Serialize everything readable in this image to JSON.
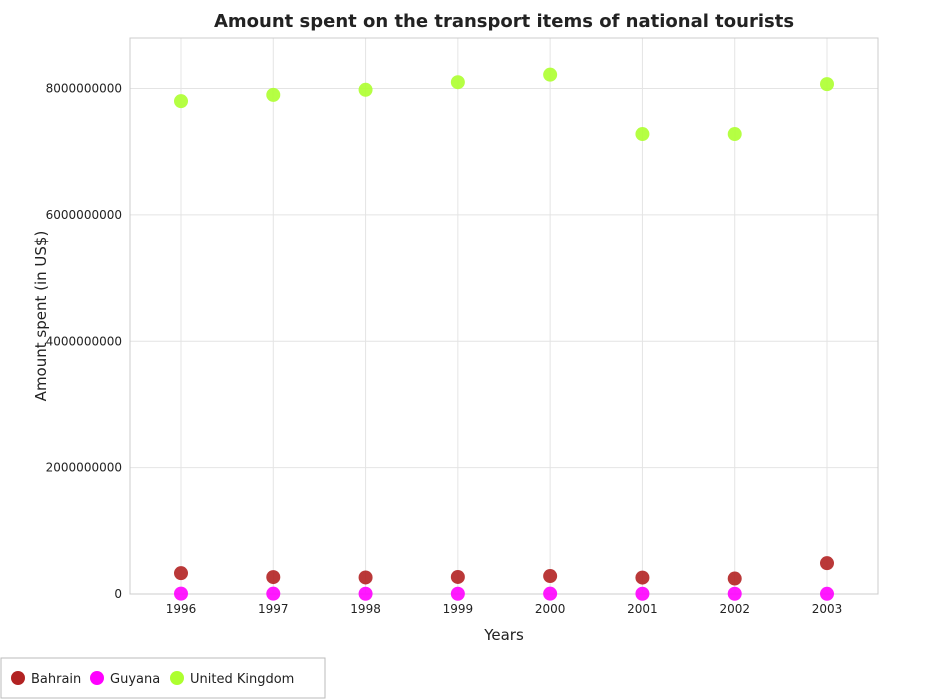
{
  "chart_data": {
    "type": "scatter",
    "title": "Amount spent on the transport items of national tourists",
    "xlabel": "Years",
    "ylabel": "Amount spent (in US$)",
    "categories": [
      "1996",
      "1997",
      "1998",
      "1999",
      "2000",
      "2001",
      "2002",
      "2003"
    ],
    "ylim": [
      0,
      8800000000
    ],
    "yticks": [
      0,
      2000000000,
      4000000000,
      6000000000,
      8000000000
    ],
    "ytick_labels": [
      "0",
      "2000000000",
      "4000000000",
      "6000000000",
      "8000000000"
    ],
    "grid": true,
    "legend_position": "bottom-left",
    "series": [
      {
        "name": "Bahrain",
        "color": "#b22222",
        "values": [
          330000000,
          268000000,
          262000000,
          270000000,
          284000000,
          260000000,
          245000000,
          488000000
        ]
      },
      {
        "name": "Guyana",
        "color": "#ff00ff",
        "values": [
          6000000,
          5000000,
          4000000,
          4000000,
          5000000,
          4000000,
          4000000,
          3000000
        ]
      },
      {
        "name": "United Kingdom",
        "color": "#adff2f",
        "values": [
          7800000000,
          7900000000,
          7980000000,
          8100000000,
          8220000000,
          7280000000,
          7280000000,
          8070000000
        ]
      }
    ]
  }
}
